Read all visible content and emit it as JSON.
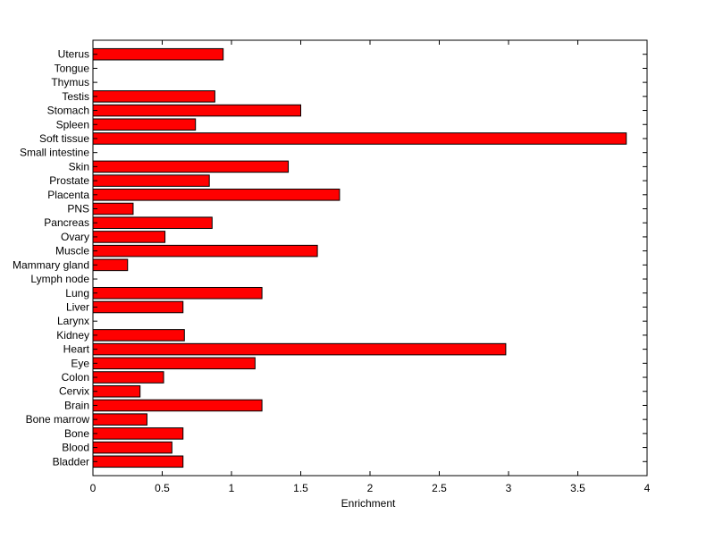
{
  "chart_data": {
    "type": "bar",
    "orientation": "horizontal",
    "title": "",
    "xlabel": "Enrichment",
    "ylabel": "",
    "xlim": [
      0,
      4
    ],
    "xticks": [
      "0",
      "0.5",
      "1",
      "1.5",
      "2",
      "2.5",
      "3",
      "3.5",
      "4"
    ],
    "grid": false,
    "bar_color": "#ff0000",
    "edge_color": "#000000",
    "categories": [
      "Bladder",
      "Blood",
      "Bone",
      "Bone marrow",
      "Brain",
      "Cervix",
      "Colon",
      "Eye",
      "Heart",
      "Kidney",
      "Larynx",
      "Liver",
      "Lung",
      "Lymph node",
      "Mammary gland",
      "Muscle",
      "Ovary",
      "Pancreas",
      "PNS",
      "Placenta",
      "Prostate",
      "Skin",
      "Small intestine",
      "Soft tissue",
      "Spleen",
      "Stomach",
      "Testis",
      "Thymus",
      "Tongue",
      "Uterus"
    ],
    "values": [
      0.65,
      0.57,
      0.65,
      0.39,
      1.22,
      0.34,
      0.51,
      1.17,
      2.98,
      0.66,
      0,
      0.65,
      1.22,
      0,
      0.25,
      1.62,
      0.52,
      0.86,
      0.29,
      1.78,
      0.84,
      1.41,
      0,
      3.85,
      0.74,
      1.5,
      0.88,
      0,
      0,
      0.94
    ]
  }
}
